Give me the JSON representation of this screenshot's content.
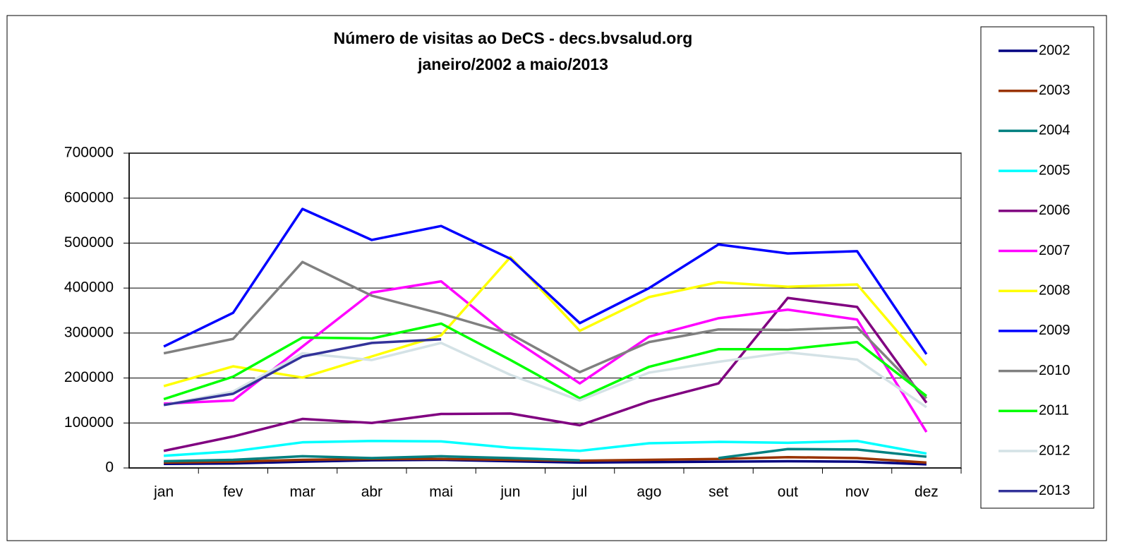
{
  "chart_data": {
    "type": "line",
    "title": "Número de visitas ao DeCS - decs.bvsalud.org",
    "subtitle": "janeiro/2002 a maio/2013",
    "categories": [
      "jan",
      "fev",
      "mar",
      "abr",
      "mai",
      "jun",
      "jul",
      "ago",
      "set",
      "out",
      "nov",
      "dez"
    ],
    "ylim": [
      0,
      700000
    ],
    "yticks": [
      0,
      100000,
      200000,
      300000,
      400000,
      500000,
      600000,
      700000
    ],
    "grid": true,
    "legend": "right",
    "series": [
      {
        "name": "2002",
        "color": "#000080",
        "values": [
          9000,
          10000,
          14000,
          17000,
          18000,
          15000,
          12000,
          13000,
          14000,
          15000,
          14000,
          8000
        ]
      },
      {
        "name": "2003",
        "color": "#993300",
        "values": [
          12000,
          14000,
          18000,
          20000,
          20000,
          18000,
          16000,
          18000,
          20000,
          24000,
          22000,
          12000
        ]
      },
      {
        "name": "2004",
        "color": "#008080",
        "values": [
          15000,
          18000,
          26000,
          22000,
          26000,
          22000,
          17000,
          null,
          22000,
          42000,
          41000,
          25000
        ]
      },
      {
        "name": "2005",
        "color": "#00ffff",
        "values": [
          27000,
          37000,
          57000,
          60000,
          59000,
          45000,
          38000,
          55000,
          58000,
          56000,
          60000,
          32000
        ]
      },
      {
        "name": "2006",
        "color": "#800080",
        "values": [
          38000,
          70000,
          109000,
          100000,
          120000,
          121000,
          95000,
          148000,
          188000,
          378000,
          358000,
          145000
        ]
      },
      {
        "name": "2007",
        "color": "#ff00ff",
        "values": [
          143000,
          150000,
          270000,
          390000,
          415000,
          290000,
          188000,
          292000,
          333000,
          352000,
          330000,
          80000
        ]
      },
      {
        "name": "2008",
        "color": "#ffff00",
        "values": [
          182000,
          226000,
          201000,
          248000,
          295000,
          469000,
          305000,
          380000,
          413000,
          403000,
          408000,
          228000
        ]
      },
      {
        "name": "2009",
        "color": "#0000ff",
        "values": [
          270000,
          345000,
          576000,
          507000,
          538000,
          465000,
          322000,
          400000,
          497000,
          477000,
          482000,
          253000
        ]
      },
      {
        "name": "2010",
        "color": "#808080",
        "values": [
          255000,
          287000,
          458000,
          383000,
          343000,
          298000,
          213000,
          280000,
          308000,
          307000,
          313000,
          155000
        ]
      },
      {
        "name": "2011",
        "color": "#00ff00",
        "values": [
          153000,
          203000,
          290000,
          288000,
          321000,
          240000,
          155000,
          225000,
          264000,
          264000,
          280000,
          160000
        ]
      },
      {
        "name": "2012",
        "color": "#d4e2e6",
        "values": [
          140000,
          170000,
          255000,
          240000,
          278000,
          207000,
          150000,
          212000,
          236000,
          257000,
          241000,
          135000
        ]
      },
      {
        "name": "2013",
        "color": "#333399",
        "values": [
          140000,
          165000,
          248000,
          278000,
          286000,
          null,
          null,
          null,
          null,
          null,
          null,
          null
        ]
      }
    ]
  }
}
